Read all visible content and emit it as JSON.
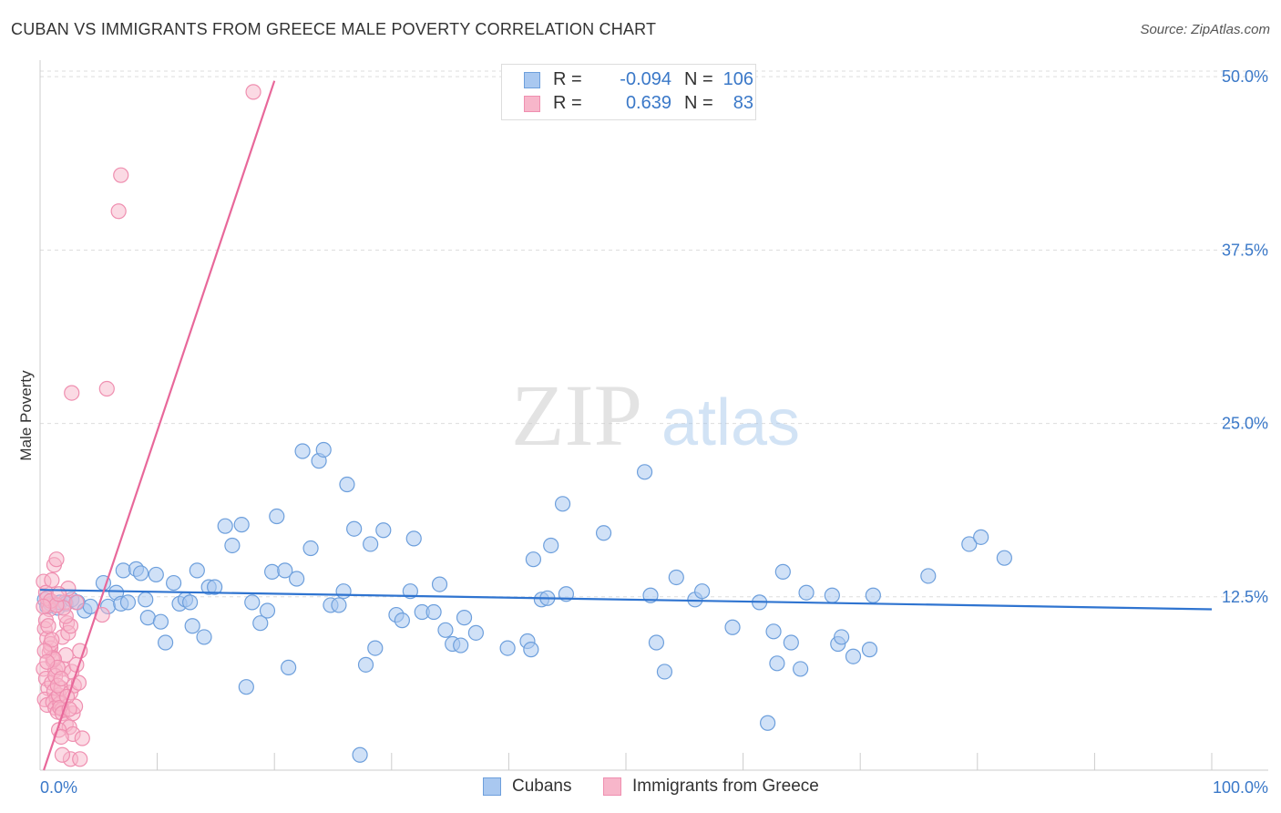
{
  "title": "CUBAN VS IMMIGRANTS FROM GREECE MALE POVERTY CORRELATION CHART",
  "source": "Source: ZipAtlas.com",
  "colors": {
    "cubans_fill": "#a9c8f0",
    "cubans_stroke": "#6d9fdc",
    "cubans_line": "#2f74d0",
    "greece_fill": "#f7b6ca",
    "greece_stroke": "#ef8fb0",
    "greece_line": "#e8689a",
    "axis_label": "#3a78c8",
    "grid": "#dddddd"
  },
  "stats_legend": {
    "rows": [
      {
        "r_label": "R =",
        "r_value": "-0.094",
        "n_label": "N =",
        "n_value": "106"
      },
      {
        "r_label": "R =",
        "r_value": "0.639",
        "n_label": "N =",
        "n_value": "83"
      }
    ]
  },
  "bottom_legend": [
    "Cubans",
    "Immigrants from Greece"
  ],
  "watermark": {
    "zip": "ZIP",
    "atlas": "atlas"
  },
  "chart_data": {
    "type": "scatter",
    "title": "CUBAN VS IMMIGRANTS FROM GREECE MALE POVERTY CORRELATION CHART",
    "xlabel": "",
    "ylabel": "Male Poverty",
    "xlim": [
      0,
      100
    ],
    "ylim": [
      0,
      50
    ],
    "x_tick_labels": [
      "0.0%",
      "100.0%"
    ],
    "y_ticks": [
      {
        "value": 12.5,
        "label": "12.5%"
      },
      {
        "value": 25.0,
        "label": "25.0%"
      },
      {
        "value": 37.5,
        "label": "37.5%"
      },
      {
        "value": 50.0,
        "label": "50.0%"
      }
    ],
    "grid": true,
    "legend_position": "top-center",
    "series": [
      {
        "name": "Cubans",
        "r": -0.094,
        "n": 106,
        "trend": [
          [
            0,
            13.0
          ],
          [
            100,
            11.6
          ]
        ],
        "points": [
          [
            0.4,
            12.3
          ],
          [
            0.6,
            11.8
          ],
          [
            0.9,
            12.0
          ],
          [
            1.5,
            11.7
          ],
          [
            1.7,
            12.1
          ],
          [
            2.2,
            12.0
          ],
          [
            2.7,
            12.3
          ],
          [
            3.2,
            12.1
          ],
          [
            3.8,
            11.5
          ],
          [
            4.3,
            11.8
          ],
          [
            5.4,
            13.5
          ],
          [
            5.8,
            11.8
          ],
          [
            6.5,
            12.8
          ],
          [
            6.9,
            12.0
          ],
          [
            7.1,
            14.4
          ],
          [
            7.5,
            12.1
          ],
          [
            8.2,
            14.5
          ],
          [
            8.6,
            14.2
          ],
          [
            9.0,
            12.3
          ],
          [
            9.2,
            11.0
          ],
          [
            9.9,
            14.1
          ],
          [
            10.3,
            10.7
          ],
          [
            10.7,
            9.2
          ],
          [
            11.4,
            13.5
          ],
          [
            11.9,
            12.0
          ],
          [
            12.4,
            12.3
          ],
          [
            12.8,
            12.1
          ],
          [
            13.0,
            10.4
          ],
          [
            13.4,
            14.4
          ],
          [
            14.0,
            9.6
          ],
          [
            14.4,
            13.2
          ],
          [
            14.9,
            13.2
          ],
          [
            15.8,
            17.6
          ],
          [
            16.4,
            16.2
          ],
          [
            17.2,
            17.7
          ],
          [
            17.6,
            6.0
          ],
          [
            18.1,
            12.1
          ],
          [
            18.8,
            10.6
          ],
          [
            19.4,
            11.5
          ],
          [
            19.8,
            14.3
          ],
          [
            20.2,
            18.3
          ],
          [
            20.9,
            14.4
          ],
          [
            21.2,
            7.4
          ],
          [
            21.9,
            13.8
          ],
          [
            22.4,
            23.0
          ],
          [
            23.1,
            16.0
          ],
          [
            23.8,
            22.3
          ],
          [
            24.2,
            23.1
          ],
          [
            24.8,
            11.9
          ],
          [
            25.5,
            11.9
          ],
          [
            25.9,
            12.9
          ],
          [
            26.2,
            20.6
          ],
          [
            26.8,
            17.4
          ],
          [
            27.3,
            1.1
          ],
          [
            27.8,
            7.6
          ],
          [
            28.2,
            16.3
          ],
          [
            28.6,
            8.8
          ],
          [
            29.3,
            17.3
          ],
          [
            30.4,
            11.2
          ],
          [
            30.9,
            10.8
          ],
          [
            31.9,
            16.7
          ],
          [
            31.6,
            12.9
          ],
          [
            32.6,
            11.4
          ],
          [
            33.6,
            11.4
          ],
          [
            34.1,
            13.4
          ],
          [
            34.6,
            10.1
          ],
          [
            35.2,
            9.1
          ],
          [
            35.9,
            9.0
          ],
          [
            36.2,
            11.0
          ],
          [
            37.2,
            9.9
          ],
          [
            39.9,
            8.8
          ],
          [
            41.6,
            9.3
          ],
          [
            41.9,
            8.7
          ],
          [
            42.1,
            15.2
          ],
          [
            42.8,
            12.3
          ],
          [
            43.3,
            12.4
          ],
          [
            43.6,
            16.2
          ],
          [
            44.6,
            19.2
          ],
          [
            44.9,
            12.7
          ],
          [
            48.1,
            17.1
          ],
          [
            51.6,
            21.5
          ],
          [
            52.1,
            12.6
          ],
          [
            52.6,
            9.2
          ],
          [
            53.3,
            7.1
          ],
          [
            54.3,
            13.9
          ],
          [
            55.9,
            12.3
          ],
          [
            56.5,
            12.9
          ],
          [
            59.1,
            10.3
          ],
          [
            61.4,
            12.1
          ],
          [
            63.4,
            14.3
          ],
          [
            62.1,
            3.4
          ],
          [
            62.6,
            10.0
          ],
          [
            62.9,
            7.7
          ],
          [
            64.1,
            9.2
          ],
          [
            64.9,
            7.3
          ],
          [
            65.4,
            12.8
          ],
          [
            67.6,
            12.6
          ],
          [
            68.1,
            9.1
          ],
          [
            68.4,
            9.6
          ],
          [
            69.4,
            8.2
          ],
          [
            70.8,
            8.7
          ],
          [
            71.1,
            12.6
          ],
          [
            75.8,
            14.0
          ],
          [
            79.3,
            16.3
          ],
          [
            80.3,
            16.8
          ],
          [
            82.3,
            15.3
          ]
        ]
      },
      {
        "name": "Immigrants from Greece",
        "r": 0.639,
        "n": 83,
        "trend": [
          [
            0,
            -0.8
          ],
          [
            20,
            49.7
          ]
        ],
        "points": [
          [
            0.3,
            13.6
          ],
          [
            0.5,
            12.8
          ],
          [
            0.7,
            11.9
          ],
          [
            0.4,
            10.2
          ],
          [
            0.6,
            9.5
          ],
          [
            0.8,
            8.5
          ],
          [
            0.3,
            7.3
          ],
          [
            0.5,
            6.6
          ],
          [
            0.7,
            5.9
          ],
          [
            0.4,
            5.1
          ],
          [
            0.6,
            4.7
          ],
          [
            0.9,
            8.8
          ],
          [
            1.1,
            7.9
          ],
          [
            1.3,
            7.2
          ],
          [
            1.0,
            6.3
          ],
          [
            1.2,
            5.7
          ],
          [
            1.4,
            5.2
          ],
          [
            1.1,
            4.9
          ],
          [
            1.3,
            4.5
          ],
          [
            1.5,
            4.2
          ],
          [
            1.7,
            4.8
          ],
          [
            1.9,
            4.4
          ],
          [
            1.6,
            5.4
          ],
          [
            1.8,
            5.9
          ],
          [
            2.0,
            7.3
          ],
          [
            2.2,
            8.3
          ],
          [
            1.9,
            9.6
          ],
          [
            2.3,
            10.6
          ],
          [
            2.1,
            12.1
          ],
          [
            2.4,
            13.1
          ],
          [
            1.2,
            14.8
          ],
          [
            1.4,
            15.2
          ],
          [
            1.0,
            13.7
          ],
          [
            0.8,
            11.6
          ],
          [
            0.5,
            10.8
          ],
          [
            0.9,
            9.1
          ],
          [
            1.1,
            8.1
          ],
          [
            1.3,
            6.8
          ],
          [
            1.5,
            6.1
          ],
          [
            1.7,
            4.5
          ],
          [
            1.9,
            4.1
          ],
          [
            2.2,
            3.3
          ],
          [
            2.5,
            3.1
          ],
          [
            2.8,
            2.6
          ],
          [
            1.6,
            2.9
          ],
          [
            1.8,
            2.4
          ],
          [
            2.6,
            0.8
          ],
          [
            1.9,
            1.1
          ],
          [
            3.4,
            0.8
          ],
          [
            3.6,
            2.3
          ],
          [
            2.8,
            4.1
          ],
          [
            3.0,
            4.6
          ],
          [
            2.6,
            5.6
          ],
          [
            2.9,
            6.1
          ],
          [
            3.3,
            6.3
          ],
          [
            2.7,
            7.1
          ],
          [
            3.1,
            7.6
          ],
          [
            3.4,
            8.6
          ],
          [
            2.4,
            9.9
          ],
          [
            2.6,
            10.4
          ],
          [
            2.2,
            11.1
          ],
          [
            2.0,
            11.7
          ],
          [
            3.1,
            12.1
          ],
          [
            5.3,
            11.2
          ],
          [
            0.6,
            12.4
          ],
          [
            0.9,
            12.2
          ],
          [
            1.4,
            11.9
          ],
          [
            1.6,
            12.7
          ],
          [
            0.7,
            10.4
          ],
          [
            1.0,
            9.4
          ],
          [
            1.2,
            8.0
          ],
          [
            1.5,
            7.4
          ],
          [
            1.8,
            6.6
          ],
          [
            0.4,
            8.6
          ],
          [
            0.6,
            7.8
          ],
          [
            2.3,
            5.3
          ],
          [
            2.5,
            4.4
          ],
          [
            2.7,
            27.2
          ],
          [
            5.7,
            27.5
          ],
          [
            6.7,
            40.3
          ],
          [
            6.9,
            42.9
          ],
          [
            18.2,
            48.9
          ],
          [
            0.3,
            11.8
          ]
        ]
      }
    ]
  }
}
